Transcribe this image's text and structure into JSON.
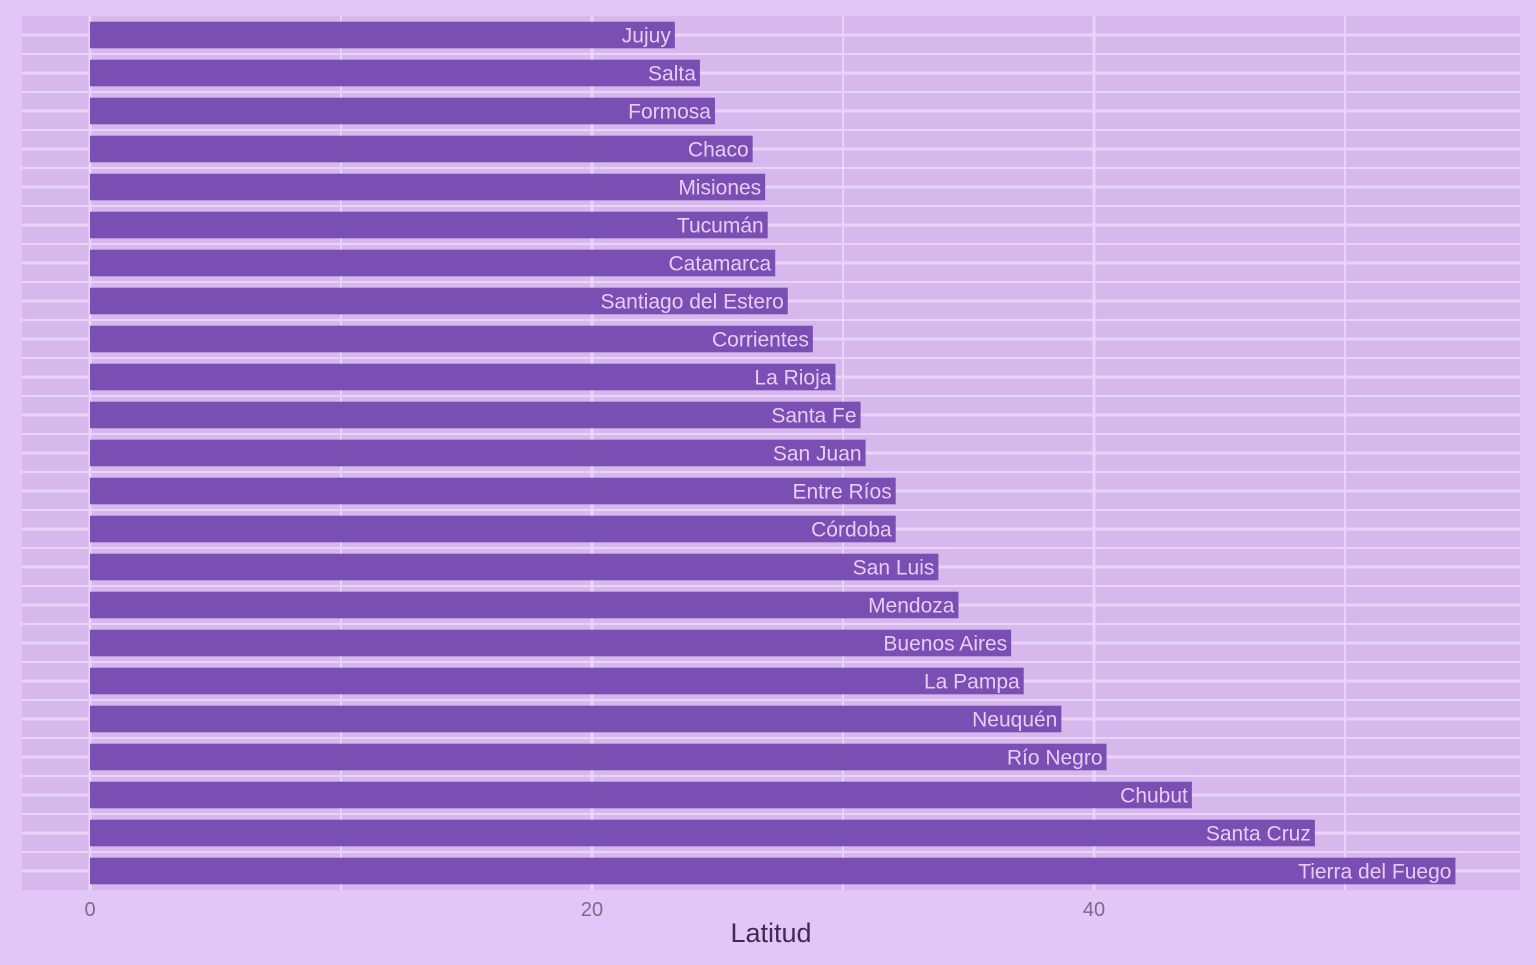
{
  "colors": {
    "page_background": "#e2c6f7",
    "panel_background": "#d7b8ec",
    "grid_line": "#e8d4f8",
    "bar_fill": "#7a4fb3",
    "bar_label": "#e7cdf6",
    "tick_label": "#7a6a8c",
    "axis_title": "#3f2a55"
  },
  "chart_data": {
    "type": "bar",
    "orientation": "horizontal",
    "title": "",
    "xlabel": "Latitud",
    "ylabel": "",
    "xlim": [
      -2.7,
      57
    ],
    "x_ticks": [
      0,
      20,
      40
    ],
    "x_tick_labels": [
      "0",
      "20",
      "40"
    ],
    "grid": true,
    "legend": "none",
    "categories": [
      "Jujuy",
      "Salta",
      "Formosa",
      "Chaco",
      "Misiones",
      "Tucumán",
      "Catamarca",
      "Santiago del Estero",
      "Corrientes",
      "La Rioja",
      "Santa Fe",
      "San Juan",
      "Entre Ríos",
      "Córdoba",
      "San Luis",
      "Mendoza",
      "Buenos Aires",
      "La Pampa",
      "Neuquén",
      "Río Negro",
      "Chubut",
      "Santa Cruz",
      "Tierra del Fuego"
    ],
    "values": [
      23.3,
      24.3,
      24.9,
      26.4,
      26.9,
      27.0,
      27.3,
      27.8,
      28.8,
      29.7,
      30.7,
      30.9,
      32.1,
      32.1,
      33.8,
      34.6,
      36.7,
      37.2,
      38.7,
      40.5,
      43.9,
      48.8,
      54.4
    ]
  }
}
